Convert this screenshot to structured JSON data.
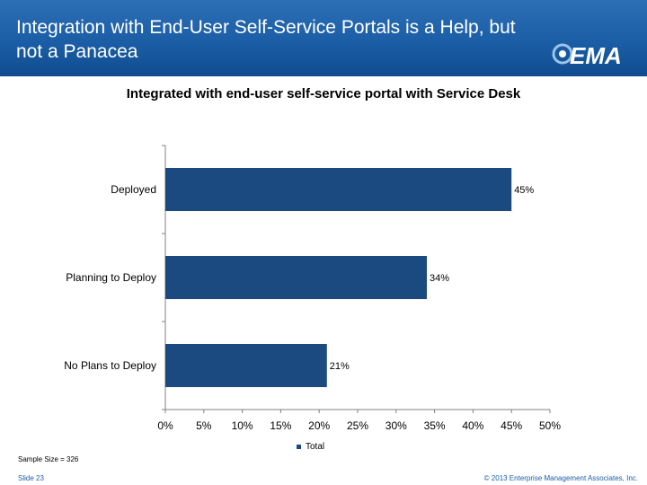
{
  "header": {
    "title": "Integration with End-User Self-Service Portals is a Help, but not a Panacea",
    "logo_text": "EMA"
  },
  "chart_data": {
    "type": "bar",
    "orientation": "horizontal",
    "title": "Integrated with end-user self-service portal with Service Desk",
    "categories": [
      "Deployed",
      "Planning to Deploy",
      "No Plans to Deploy"
    ],
    "series": [
      {
        "name": "Total",
        "values": [
          45,
          34,
          21
        ],
        "data_labels": [
          "45%",
          "34%",
          "21%"
        ],
        "color": "#1a4a7f"
      }
    ],
    "xlim": [
      0,
      50
    ],
    "xticks": [
      0,
      5,
      10,
      15,
      20,
      25,
      30,
      35,
      40,
      45,
      50
    ],
    "xtick_labels": [
      "0%",
      "5%",
      "10%",
      "15%",
      "20%",
      "25%",
      "30%",
      "35%",
      "40%",
      "45%",
      "50%"
    ],
    "legend": "bottom-center",
    "grid": false
  },
  "footer": {
    "sample_size": "Sample Size = 326",
    "slide": "Slide 23",
    "copyright": "© 2013 Enterprise Management Associates, Inc."
  },
  "colors": {
    "header": "#1b5ea6",
    "bar": "#1a4a7f"
  }
}
